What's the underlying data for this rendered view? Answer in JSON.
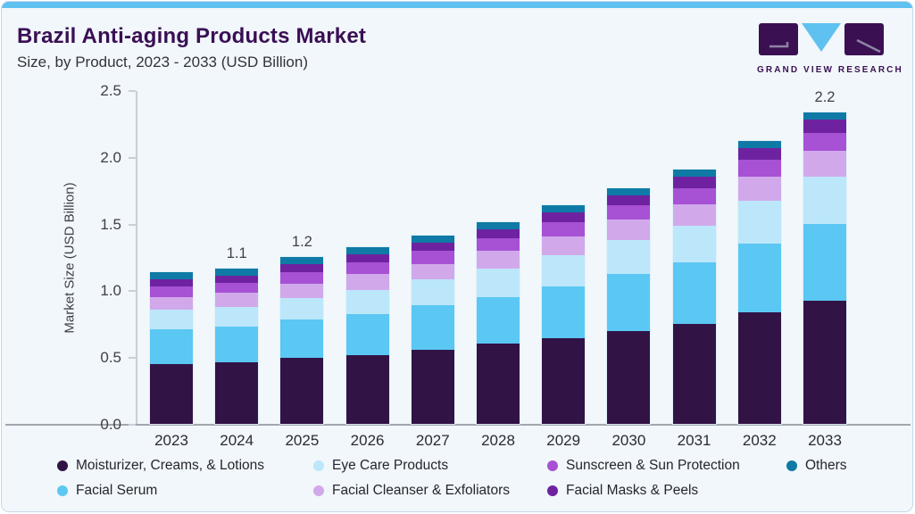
{
  "logo": {
    "text": "GRAND VIEW RESEARCH"
  },
  "colors": {
    "accent": "#5EC1F0",
    "title_text": "#3A0F55"
  },
  "chart_data": {
    "type": "bar",
    "stacked": true,
    "title": "Brazil Anti-aging Products Market",
    "subtitle": "Size, by Product, 2023 - 2033 (USD Billion)",
    "xlabel": "",
    "ylabel": "Market Size (USD Billion)",
    "ylim": [
      0,
      2.5
    ],
    "yticks": [
      "0.0",
      "0.5",
      "1.0",
      "1.5",
      "2.0",
      "2.5"
    ],
    "grid": false,
    "legend_position": "bottom",
    "categories": [
      "2023",
      "2024",
      "2025",
      "2026",
      "2027",
      "2028",
      "2029",
      "2030",
      "2031",
      "2032",
      "2033"
    ],
    "series": [
      {
        "name": "Moisturizer, Creams, & Lotions",
        "color": "#321345",
        "values": [
          0.42,
          0.43,
          0.46,
          0.48,
          0.52,
          0.56,
          0.6,
          0.65,
          0.7,
          0.78,
          0.86
        ]
      },
      {
        "name": "Facial Serum",
        "color": "#5BC7F3",
        "values": [
          0.24,
          0.25,
          0.27,
          0.29,
          0.31,
          0.33,
          0.36,
          0.4,
          0.43,
          0.48,
          0.54
        ]
      },
      {
        "name": "Eye Care Products",
        "color": "#BCE7FA",
        "values": [
          0.14,
          0.14,
          0.15,
          0.17,
          0.18,
          0.2,
          0.22,
          0.24,
          0.26,
          0.3,
          0.33
        ]
      },
      {
        "name": "Facial Cleanser & Exfoliators",
        "color": "#D1A9EB",
        "values": [
          0.09,
          0.1,
          0.1,
          0.11,
          0.11,
          0.12,
          0.13,
          0.14,
          0.15,
          0.17,
          0.18
        ]
      },
      {
        "name": "Sunscreen & Sun Protection",
        "color": "#A751D5",
        "values": [
          0.07,
          0.07,
          0.08,
          0.08,
          0.09,
          0.09,
          0.1,
          0.1,
          0.11,
          0.12,
          0.13
        ]
      },
      {
        "name": "Facial Masks & Peels",
        "color": "#6E22A0",
        "values": [
          0.05,
          0.05,
          0.06,
          0.06,
          0.06,
          0.06,
          0.07,
          0.07,
          0.08,
          0.08,
          0.09
        ]
      },
      {
        "name": "Others",
        "color": "#0F7AA5",
        "values": [
          0.05,
          0.05,
          0.05,
          0.05,
          0.05,
          0.05,
          0.05,
          0.05,
          0.05,
          0.05,
          0.05
        ]
      }
    ],
    "bar_labels": {
      "2024": "1.1",
      "2025": "1.2",
      "2033": "2.2"
    },
    "legend_order": [
      0,
      2,
      4,
      6,
      1,
      3,
      5
    ]
  }
}
